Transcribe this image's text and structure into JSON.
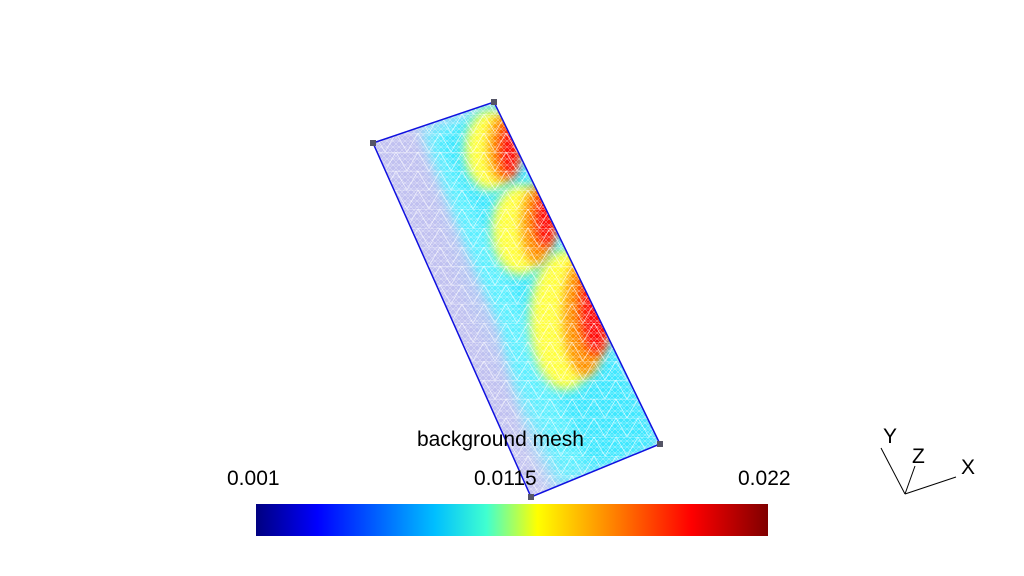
{
  "view": {
    "background": "#ffffff"
  },
  "mesh": {
    "edge_color": "#0000cc",
    "wire_color": "#ffffff",
    "vertex_marker_color": "#555566"
  },
  "colorbar": {
    "title": "background mesh",
    "min_label": "0.001",
    "mid_label": "0.0115",
    "max_label": "0.022",
    "colormap": [
      "#000080",
      "#0000ff",
      "#00bfff",
      "#00ffff",
      "#ffff00",
      "#ff8000",
      "#ff0000",
      "#800000"
    ]
  },
  "axes": {
    "x_label": "X",
    "y_label": "Y",
    "z_label": "Z"
  }
}
